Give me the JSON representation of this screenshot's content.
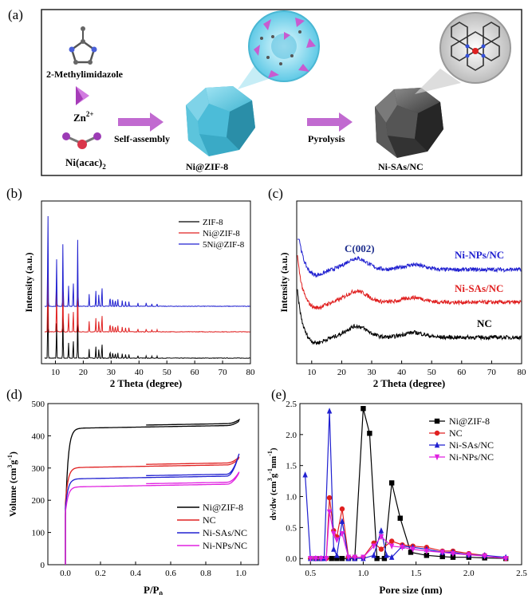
{
  "panel_a": {
    "label": "(a)",
    "ligand": "2-Methylimidazole",
    "zinc": "Zn",
    "zinc_sup": "2+",
    "nickel": "Ni(acac)",
    "nickel_sub": "2",
    "step1": "Self-assembly",
    "step2": "Pyrolysis",
    "product1": "Ni@ZIF-8",
    "product2": "Ni-SAs/NC",
    "colors": {
      "zif": "#3fb4cf",
      "nc": "#3a3a3a",
      "arrow": "#bb5fc9",
      "zn_pyramid": "#c85bd0"
    }
  },
  "chart_data": [
    {
      "panel": "(b)",
      "type": "line",
      "xlabel": "2 Theta (degree)",
      "ylabel": "Intensity (a.u.)",
      "xlim": [
        5,
        80
      ],
      "xticks": [
        10,
        20,
        30,
        40,
        50,
        60,
        70,
        80
      ],
      "yticks_shown": false,
      "legend_position": "top-right",
      "series": [
        {
          "name": "ZIF-8",
          "color": "#000000",
          "peaks_x": [
            7.3,
            10.4,
            12.7,
            14.7,
            16.4,
            18.0,
            22.1,
            24.5,
            25.6,
            26.7,
            29.6,
            30.6,
            31.5,
            32.4,
            34.0,
            35.2,
            36.4,
            39.6,
            42.6,
            44.6,
            46.5
          ]
        },
        {
          "name": "Ni@ZIF-8",
          "color": "#e02020",
          "peaks_x": [
            7.3,
            10.4,
            12.7,
            14.7,
            16.4,
            18.0,
            22.1,
            24.5,
            25.6,
            26.7,
            29.6,
            30.6,
            31.5,
            32.4,
            34.0,
            35.2,
            36.4,
            39.6,
            42.6,
            44.6,
            46.5
          ]
        },
        {
          "name": "5Ni@ZIF-8",
          "color": "#2020d0",
          "peaks_x": [
            7.3,
            10.4,
            12.7,
            14.7,
            16.4,
            18.0,
            22.1,
            24.5,
            25.6,
            26.7,
            29.6,
            30.6,
            31.5,
            32.4,
            34.0,
            35.2,
            36.4,
            39.6,
            42.6,
            44.6,
            46.5
          ]
        }
      ]
    },
    {
      "panel": "(c)",
      "type": "line",
      "xlabel": "2 Theta (degree)",
      "ylabel": "Intensity (a.u.)",
      "xlim": [
        5,
        80
      ],
      "xticks": [
        10,
        20,
        30,
        40,
        50,
        60,
        70,
        80
      ],
      "yticks_shown": false,
      "annotation": "C(002)",
      "annotation_x": 25,
      "series": [
        {
          "name": "Ni-NPs/NC",
          "color": "#2020d0",
          "label_color": "#2020d0",
          "broad_peaks_x": [
            25,
            44
          ]
        },
        {
          "name": "Ni-SAs/NC",
          "color": "#e02020",
          "label_color": "#e02020",
          "broad_peaks_x": [
            25,
            44
          ]
        },
        {
          "name": "NC",
          "color": "#000000",
          "label_color": "#000000",
          "broad_peaks_x": [
            25,
            44
          ]
        }
      ]
    },
    {
      "panel": "(d)",
      "type": "line",
      "xlabel": "P/P",
      "xlabel_sub": "0",
      "ylabel": "Volume (cm",
      "ylabel_sup1": "3",
      "ylabel_mid": "g",
      "ylabel_sup2": "-1",
      "ylabel_end": ")",
      "xlim": [
        -0.1,
        1.1
      ],
      "ylim": [
        0,
        500
      ],
      "xticks": [
        0.0,
        0.2,
        0.4,
        0.6,
        0.8,
        1.0
      ],
      "xtick_labels": [
        "0.0",
        "0.2",
        "0.4",
        "0.6",
        "0.8",
        "1.0"
      ],
      "yticks": [
        0,
        100,
        200,
        300,
        400,
        500
      ],
      "legend_position": "bottom-right",
      "series": [
        {
          "name": "Ni@ZIF-8",
          "color": "#000000",
          "plateau": 432,
          "onset": 150,
          "end": 445
        },
        {
          "name": "NC",
          "color": "#e02020",
          "plateau": 310,
          "onset": 190,
          "end": 330
        },
        {
          "name": "Ni-SAs/NC",
          "color": "#2020d0",
          "plateau": 275,
          "onset": 175,
          "end": 345
        },
        {
          "name": "Ni-NPs/NC",
          "color": "#e020e0",
          "plateau": 250,
          "onset": 160,
          "end": 285
        }
      ]
    },
    {
      "panel": "(e)",
      "type": "line",
      "xlabel": "Pore size (nm)",
      "ylabel": "dv/dw (cm",
      "ylabel_sup1": "3",
      "ylabel_mid": "g",
      "ylabel_sup2": "-1",
      "ylabel_mid2": "nm",
      "ylabel_sup3": "-1",
      "ylabel_end": ")",
      "xlim": [
        0.4,
        2.5
      ],
      "ylim": [
        -0.1,
        2.5
      ],
      "xticks": [
        0.5,
        1.0,
        1.5,
        2.0,
        2.5
      ],
      "xtick_labels": [
        "0.5",
        "1.0",
        "1.5",
        "2.0",
        "2.5"
      ],
      "yticks": [
        0.0,
        0.5,
        1.0,
        1.5,
        2.0,
        2.5
      ],
      "ytick_labels": [
        "0.0",
        "0.5",
        "1.0",
        "1.5",
        "2.0",
        "2.5"
      ],
      "legend_position": "top-right",
      "series": [
        {
          "name": "Ni@ZIF-8",
          "color": "#000000",
          "marker": "square",
          "x": [
            0.55,
            0.6,
            0.7,
            0.75,
            0.8,
            0.86,
            0.92,
            1.0,
            1.06,
            1.13,
            1.2,
            1.27,
            1.35,
            1.45,
            1.6,
            1.75,
            1.85,
            2.0,
            2.15,
            2.35
          ],
          "y": [
            0.0,
            0.0,
            0.0,
            0.0,
            0.0,
            0.0,
            0.0,
            2.42,
            2.02,
            0.0,
            0.0,
            1.22,
            0.65,
            0.1,
            0.05,
            0.03,
            0.02,
            0.02,
            0.01,
            0.0
          ]
        },
        {
          "name": "NC",
          "color": "#e02020",
          "marker": "circle",
          "x": [
            0.5,
            0.55,
            0.6,
            0.65,
            0.68,
            0.72,
            0.75,
            0.8,
            0.86,
            0.92,
            1.0,
            1.1,
            1.17,
            1.27,
            1.37,
            1.47,
            1.6,
            1.75,
            1.85,
            2.0,
            2.15,
            2.35
          ],
          "y": [
            0.0,
            0.0,
            0.0,
            0.0,
            0.98,
            0.45,
            0.35,
            0.8,
            0.02,
            0.02,
            0.02,
            0.25,
            0.15,
            0.28,
            0.22,
            0.2,
            0.18,
            0.12,
            0.12,
            0.08,
            0.05,
            0.0
          ]
        },
        {
          "name": "Ni-SAs/NC",
          "color": "#2020d0",
          "marker": "triangle",
          "x": [
            0.45,
            0.5,
            0.55,
            0.6,
            0.63,
            0.68,
            0.72,
            0.75,
            0.8,
            0.86,
            0.92,
            1.0,
            1.1,
            1.17,
            1.22,
            1.27,
            1.37,
            1.47,
            1.6,
            1.75,
            1.85,
            2.0,
            2.15,
            2.35
          ],
          "y": [
            1.35,
            0.0,
            0.0,
            0.0,
            0.0,
            2.38,
            0.15,
            0.05,
            0.6,
            0.0,
            0.0,
            0.0,
            0.05,
            0.45,
            0.05,
            0.02,
            0.2,
            0.18,
            0.15,
            0.1,
            0.1,
            0.06,
            0.05,
            0.02
          ]
        },
        {
          "name": "Ni-NPs/NC",
          "color": "#e020e0",
          "marker": "triangle-down",
          "x": [
            0.5,
            0.55,
            0.6,
            0.65,
            0.68,
            0.72,
            0.75,
            0.8,
            0.86,
            0.92,
            1.0,
            1.1,
            1.17,
            1.27,
            1.37,
            1.47,
            1.6,
            1.75,
            1.85,
            2.0,
            2.15,
            2.35
          ],
          "y": [
            0.0,
            0.0,
            0.0,
            0.0,
            0.75,
            0.4,
            0.3,
            0.4,
            0.02,
            0.02,
            0.02,
            0.2,
            0.35,
            0.2,
            0.18,
            0.15,
            0.12,
            0.1,
            0.08,
            0.06,
            0.04,
            0.0
          ]
        }
      ]
    }
  ]
}
